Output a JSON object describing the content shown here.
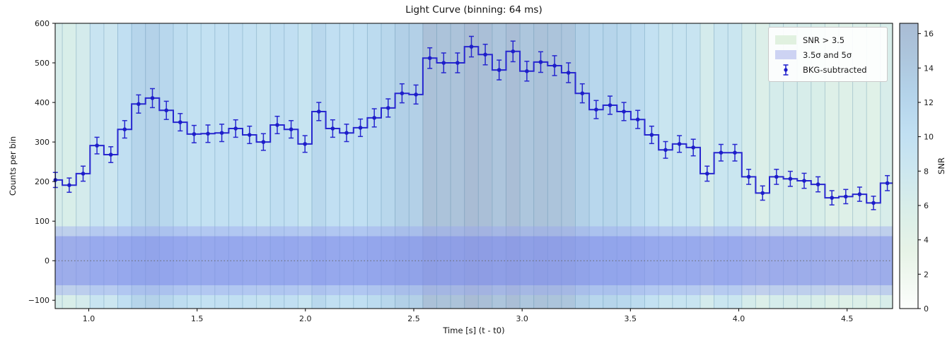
{
  "figure": {
    "title": "Light Curve (binning: 64 ms)"
  },
  "axes": {
    "xlabel": "Time [s] (t - t0)",
    "ylabel": "Counts per bin"
  },
  "legend": {
    "items": [
      {
        "label": "SNR > 3.5",
        "swatch_color": "#e1f1e0",
        "type": "patch"
      },
      {
        "label": "3.5σ and 5σ",
        "swatch_color": "#cdd3f3",
        "type": "patch"
      },
      {
        "label": "BKG-subtracted",
        "swatch_color": "#2727cf",
        "type": "errorbar"
      }
    ]
  },
  "colorbar": {
    "label": "SNR",
    "ticks": [
      0,
      2,
      4,
      6,
      8,
      10,
      12,
      14,
      16
    ],
    "vmin": 0,
    "vmax": 16.6,
    "colormap": [
      [
        0.0,
        "#fcfefc"
      ],
      [
        0.2,
        "#e7f3e7"
      ],
      [
        0.35,
        "#d9eee9"
      ],
      [
        0.5,
        "#cbe6f0"
      ],
      [
        0.62,
        "#c0dff2"
      ],
      [
        0.75,
        "#b4d3ea"
      ],
      [
        0.88,
        "#adc6dd"
      ],
      [
        1.0,
        "#a9bcd4"
      ]
    ]
  },
  "colors": {
    "curve": "#2727cf",
    "marker": "#1d1dc9",
    "band_outer": "rgba(152,162,240,0.40)",
    "band_inner": "rgba(118,131,232,0.45)",
    "zero_line": "#666666",
    "stripe_edge_mix": "#4a7fa0",
    "spine": "#000000",
    "tick_text": "#1a1a1a"
  },
  "chart_data": {
    "type": "line",
    "style": "steps-mid light curve with symmetric error bars, SNR-colored background stripes and sigma bands",
    "title": "Light Curve (binning: 64 ms)",
    "xlabel": "Time [s] (t - t0)",
    "ylabel": "Counts per bin",
    "xlim": [
      0.845,
      4.71
    ],
    "ylim": [
      -121,
      600
    ],
    "xticks": [
      1.0,
      1.5,
      2.0,
      2.5,
      3.0,
      3.5,
      4.0,
      4.5
    ],
    "yticks": [
      -100,
      0,
      100,
      200,
      300,
      400,
      500,
      600
    ],
    "grid": false,
    "legend_position": "upper right",
    "bin_width_s": 0.064,
    "x": [
      0.846,
      0.91,
      0.974,
      1.038,
      1.102,
      1.166,
      1.23,
      1.294,
      1.358,
      1.422,
      1.486,
      1.55,
      1.614,
      1.678,
      1.742,
      1.806,
      1.87,
      1.934,
      1.998,
      2.062,
      2.126,
      2.19,
      2.254,
      2.318,
      2.382,
      2.446,
      2.51,
      2.574,
      2.638,
      2.702,
      2.766,
      2.83,
      2.894,
      2.958,
      3.022,
      3.086,
      3.15,
      3.214,
      3.278,
      3.342,
      3.406,
      3.47,
      3.534,
      3.598,
      3.662,
      3.726,
      3.79,
      3.854,
      3.918,
      3.982,
      4.046,
      4.11,
      4.174,
      4.238,
      4.302,
      4.366,
      4.43,
      4.494,
      4.558,
      4.622,
      4.686
    ],
    "series": [
      {
        "name": "BKG-subtracted",
        "values": [
          204,
          191,
          220,
          291,
          268,
          332,
          396,
          411,
          380,
          350,
          320,
          321,
          323,
          334,
          318,
          300,
          343,
          332,
          295,
          377,
          334,
          323,
          336,
          361,
          386,
          423,
          420,
          512,
          500,
          500,
          541,
          521,
          482,
          529,
          479,
          502,
          493,
          475,
          423,
          382,
          393,
          377,
          357,
          318,
          280,
          295,
          286,
          220,
          273,
          273,
          212,
          171,
          212,
          207,
          202,
          193,
          159,
          162,
          168,
          146,
          196
        ],
        "errors": [
          19,
          18,
          19,
          21,
          20,
          22,
          23,
          24,
          23,
          22,
          22,
          22,
          22,
          22,
          22,
          21,
          22,
          22,
          21,
          23,
          22,
          22,
          22,
          23,
          23,
          24,
          24,
          26,
          25,
          25,
          26,
          26,
          25,
          26,
          25,
          26,
          25,
          25,
          24,
          23,
          23,
          23,
          23,
          22,
          21,
          21,
          21,
          19,
          21,
          21,
          19,
          18,
          19,
          19,
          19,
          19,
          18,
          18,
          18,
          17,
          19
        ]
      }
    ],
    "snr_per_bin": [
      6.3,
      5.9,
      6.7,
      8.9,
      8.2,
      10.2,
      12.1,
      12.6,
      11.7,
      10.7,
      9.8,
      9.8,
      9.9,
      10.2,
      9.8,
      9.2,
      10.5,
      10.2,
      9.0,
      11.6,
      10.2,
      9.9,
      10.3,
      11.1,
      11.8,
      13.0,
      12.9,
      15.7,
      15.3,
      15.3,
      16.6,
      16.0,
      14.8,
      16.2,
      14.7,
      15.4,
      15.1,
      14.6,
      13.0,
      11.7,
      12.1,
      11.6,
      11.0,
      9.8,
      8.6,
      9.0,
      8.8,
      6.7,
      8.4,
      8.4,
      6.5,
      5.2,
      6.5,
      6.3,
      6.2,
      5.9,
      4.9,
      5.0,
      5.2,
      4.5,
      6.0
    ],
    "bands": {
      "labels": [
        "3.5σ",
        "5σ"
      ],
      "inner_half_width": 62,
      "outer_half_width": 87
    },
    "zero_line_y": 0
  }
}
